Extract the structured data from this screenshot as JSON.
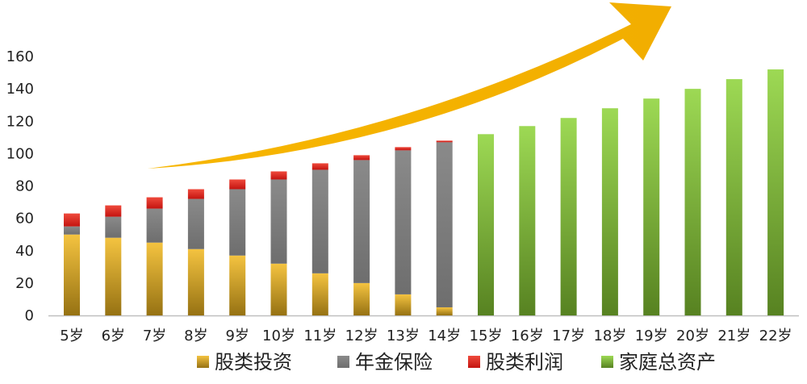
{
  "chart_data": {
    "type": "bar",
    "stacked": true,
    "categories": [
      "5岁",
      "6岁",
      "7岁",
      "8岁",
      "9岁",
      "10岁",
      "11岁",
      "12岁",
      "13岁",
      "14岁",
      "15岁",
      "16岁",
      "17岁",
      "18岁",
      "19岁",
      "20岁",
      "21岁",
      "22岁"
    ],
    "series": [
      {
        "name": "股类投资",
        "color": "#F2B81E",
        "values": [
          50,
          48,
          45,
          41,
          37,
          32,
          26,
          20,
          13,
          5,
          null,
          null,
          null,
          null,
          null,
          null,
          null,
          null
        ]
      },
      {
        "name": "年金保险",
        "color": "#7F7F7F",
        "values": [
          5,
          13,
          21,
          31,
          41,
          52,
          64,
          76,
          89,
          102,
          null,
          null,
          null,
          null,
          null,
          null,
          null,
          null
        ]
      },
      {
        "name": "股类利润",
        "color": "#E31D1C",
        "values": [
          8,
          7,
          7,
          6,
          6,
          5,
          4,
          3,
          2,
          1,
          null,
          null,
          null,
          null,
          null,
          null,
          null,
          null
        ]
      },
      {
        "name": "家庭总资产",
        "color": "#8CD236",
        "values": [
          null,
          null,
          null,
          null,
          null,
          null,
          null,
          null,
          null,
          null,
          112,
          117,
          122,
          128,
          134,
          140,
          146,
          152
        ]
      }
    ],
    "ylim": [
      0,
      160
    ],
    "yticks": [
      0,
      20,
      40,
      60,
      80,
      100,
      120,
      140,
      160
    ],
    "grid": false,
    "legend_position": "bottom",
    "annotations": [
      {
        "type": "arrow",
        "color": "#F5B400",
        "direction": "up-right"
      }
    ]
  }
}
